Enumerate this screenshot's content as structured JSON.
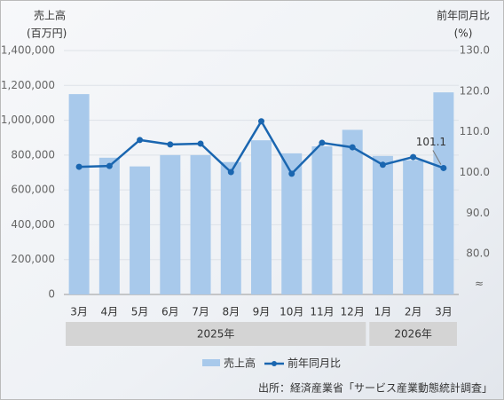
{
  "chart_data": {
    "type": "bar-line",
    "y_title": [
      "売上高",
      "(百万円)"
    ],
    "y2_title": [
      "前年同月比",
      "(%)"
    ],
    "categories": [
      "3月",
      "4月",
      "5月",
      "6月",
      "7月",
      "8月",
      "9月",
      "10月",
      "11月",
      "12月",
      "1月",
      "2月",
      "3月"
    ],
    "groups": [
      {
        "label": "2025年",
        "start": 0,
        "end": 9
      },
      {
        "label": "2026年",
        "start": 10,
        "end": 12
      }
    ],
    "series": [
      {
        "name": "売上高",
        "type": "bar",
        "color": "#a8c9eb",
        "values": [
          1150000,
          785000,
          735000,
          800000,
          800000,
          760000,
          885000,
          810000,
          850000,
          945000,
          795000,
          770000,
          1160000
        ]
      },
      {
        "name": "前年同月比",
        "type": "line",
        "axis": "y2",
        "color": "#1a66b0",
        "values": [
          101.4,
          101.6,
          108.0,
          106.9,
          107.1,
          100.1,
          112.6,
          99.7,
          107.3,
          106.2,
          101.9,
          103.8,
          101.1
        ],
        "labeled_point": 12
      }
    ],
    "ylim": [
      0,
      1400000
    ],
    "yticks": [
      0,
      {
        "value": 200000,
        "label": "200,000"
      },
      {
        "value": 400000,
        "label": "400,000"
      },
      {
        "value": 600000,
        "label": "600,000"
      },
      {
        "value": 800000,
        "label": "800,000"
      },
      {
        "value": 1000000,
        "label": "1,000,000"
      },
      {
        "value": 1200000,
        "label": "1,200,000"
      },
      {
        "value": 1400000,
        "label": "1,400,000"
      }
    ],
    "y2lim": [
      70,
      130
    ],
    "y2ticks": [
      {
        "value": 80,
        "label": "80.0"
      },
      {
        "value": 90,
        "label": "90.0"
      },
      {
        "value": 100,
        "label": "100.0"
      },
      {
        "value": 110,
        "label": "110.0"
      },
      {
        "value": 120,
        "label": "120.0"
      },
      {
        "value": 130,
        "label": "130.0"
      }
    ],
    "y2_break": "≈",
    "grid": true,
    "source": "出所：経済産業省「サービス産業動態統計調査」"
  }
}
